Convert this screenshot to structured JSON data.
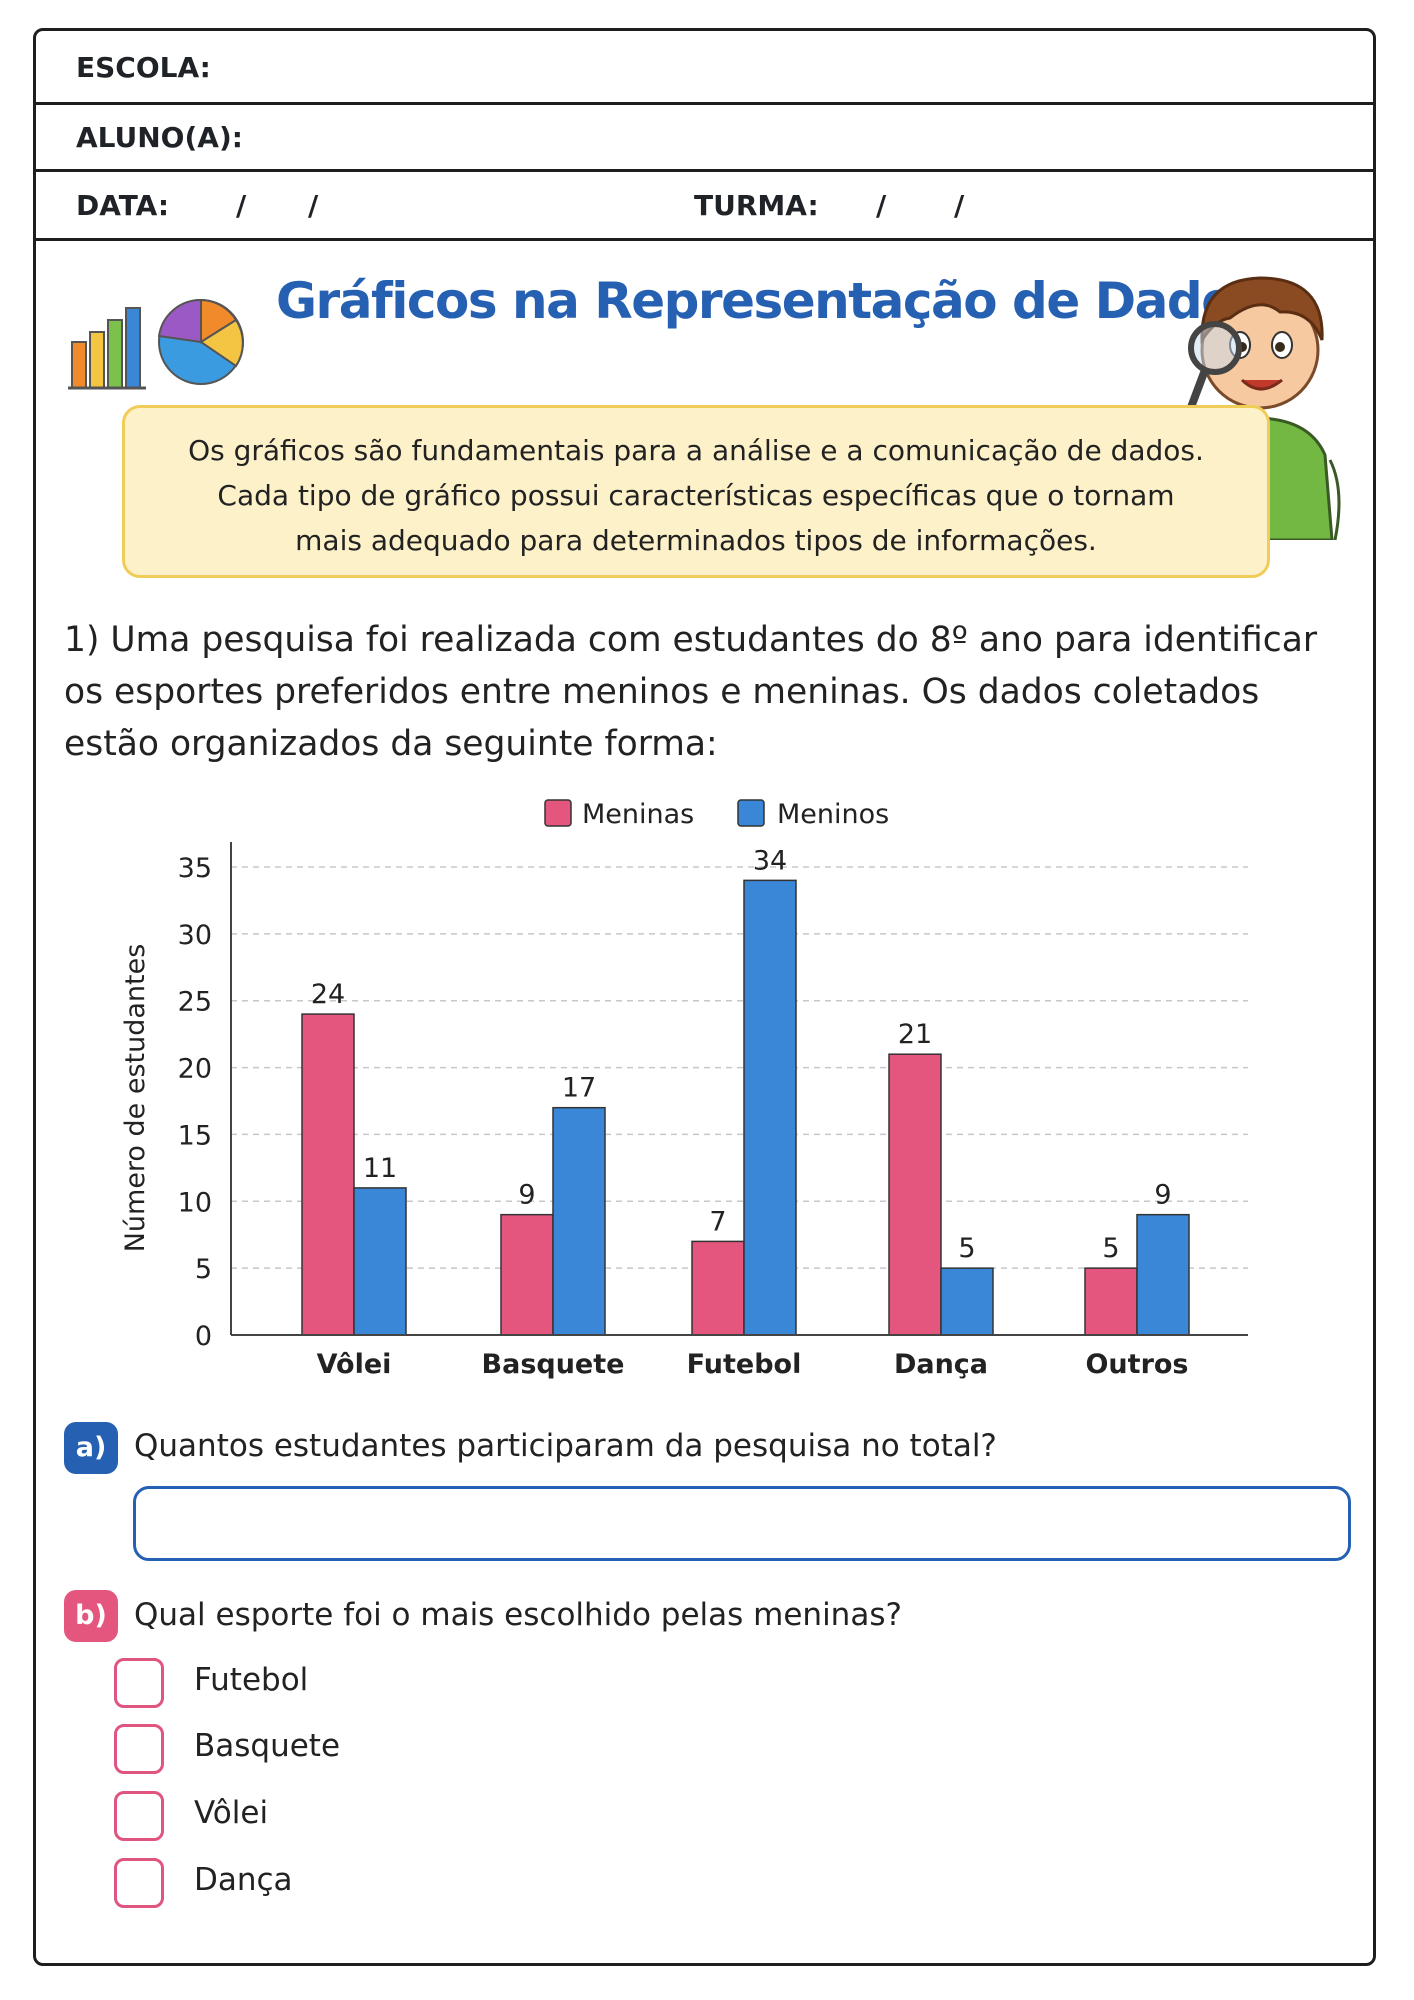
{
  "header": {
    "school_label": "ESCOLA:",
    "student_label": "ALUNO(A):",
    "date_label": "DATA:",
    "class_label": "TURMA:",
    "slash": "/"
  },
  "title": "Gráficos na Representação de Dados",
  "intro": {
    "line1": "Os gráficos são fundamentais para a análise e a comunicação de dados.",
    "line2": "Cada tipo de gráfico possui características específicas que o tornam",
    "line3": "mais adequado para determinados tipos de informações."
  },
  "question1": {
    "line1": "1) Uma pesquisa foi realizada com estudantes do 8º ano para identificar",
    "line2": "os esportes preferidos entre meninos e meninas. Os dados coletados",
    "line3": "estão organizados da seguinte forma:"
  },
  "colors": {
    "meninas": "#e5567f",
    "meninos": "#3a87d8",
    "title_blue": "#2660b2",
    "label_a": "#2660b2",
    "label_b": "#e5567f"
  },
  "chart_data": {
    "type": "bar",
    "categories": [
      "Vôlei",
      "Basquete",
      "Futebol",
      "Dança",
      "Outros"
    ],
    "series": [
      {
        "name": "Meninas",
        "values": [
          24,
          9,
          7,
          21,
          5
        ]
      },
      {
        "name": "Meninos",
        "values": [
          11,
          17,
          34,
          5,
          9
        ]
      }
    ],
    "ylabel": "Número de estudantes",
    "xlabel": "",
    "ylim": [
      0,
      35
    ],
    "yticks": [
      0,
      5,
      10,
      15,
      20,
      25,
      30,
      35
    ],
    "grid": true,
    "legend_position": "top"
  },
  "part_a": {
    "label": "a)",
    "text": "Quantos estudantes participaram da pesquisa no total?"
  },
  "part_b": {
    "label": "b)",
    "text": "Qual esporte foi o mais escolhido pelas meninas?",
    "options": [
      "Futebol",
      "Basquete",
      "Vôlei",
      "Dança"
    ]
  },
  "icons": {
    "header_left": "bar-chart-and-pie-chart-icon",
    "header_right": "boy-with-magnifying-glass-illustration"
  }
}
